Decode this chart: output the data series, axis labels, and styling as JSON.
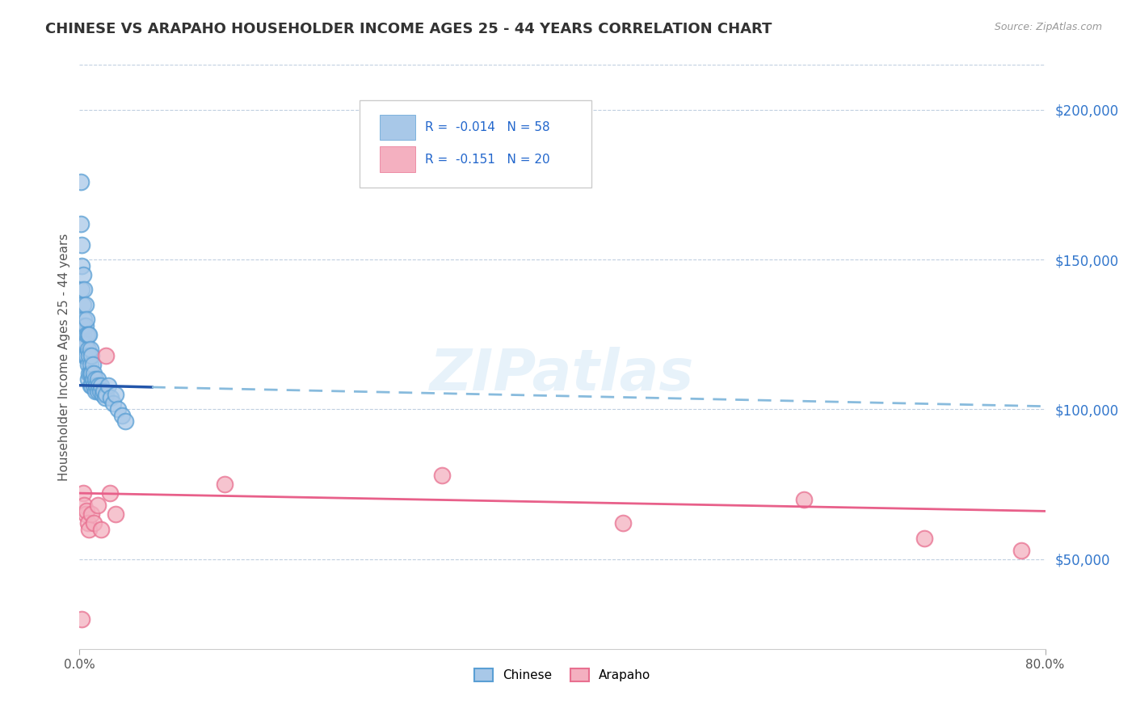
{
  "title": "CHINESE VS ARAPAHO HOUSEHOLDER INCOME AGES 25 - 44 YEARS CORRELATION CHART",
  "source": "Source: ZipAtlas.com",
  "ylabel": "Householder Income Ages 25 - 44 years",
  "xlim": [
    0.0,
    0.8
  ],
  "ylim": [
    20000,
    215000
  ],
  "yticks": [
    50000,
    100000,
    150000,
    200000
  ],
  "ytick_labels": [
    "$50,000",
    "$100,000",
    "$150,000",
    "$200,000"
  ],
  "chinese_color": "#a8c8e8",
  "chinese_edge_color": "#5a9fd4",
  "arapaho_color": "#f4b0c0",
  "arapaho_edge_color": "#e87090",
  "chinese_line_color_solid": "#2255aa",
  "chinese_line_color_dash": "#88bbdd",
  "arapaho_line_color": "#e8608a",
  "legend_text_color": "#2266cc",
  "watermark": "ZIPatlas",
  "chinese_x": [
    0.001,
    0.001,
    0.002,
    0.002,
    0.002,
    0.003,
    0.003,
    0.003,
    0.003,
    0.003,
    0.004,
    0.004,
    0.004,
    0.004,
    0.005,
    0.005,
    0.005,
    0.005,
    0.006,
    0.006,
    0.006,
    0.007,
    0.007,
    0.007,
    0.007,
    0.008,
    0.008,
    0.008,
    0.009,
    0.009,
    0.009,
    0.009,
    0.01,
    0.01,
    0.01,
    0.011,
    0.011,
    0.012,
    0.012,
    0.013,
    0.013,
    0.014,
    0.015,
    0.015,
    0.016,
    0.017,
    0.018,
    0.019,
    0.02,
    0.021,
    0.022,
    0.024,
    0.026,
    0.028,
    0.03,
    0.032,
    0.035,
    0.038
  ],
  "chinese_y": [
    176000,
    162000,
    155000,
    148000,
    140000,
    145000,
    135000,
    128000,
    125000,
    120000,
    140000,
    130000,
    122000,
    118000,
    135000,
    128000,
    122000,
    118000,
    130000,
    125000,
    118000,
    125000,
    120000,
    115000,
    110000,
    125000,
    118000,
    112000,
    120000,
    115000,
    112000,
    108000,
    118000,
    112000,
    108000,
    115000,
    110000,
    112000,
    108000,
    110000,
    106000,
    108000,
    110000,
    106000,
    108000,
    106000,
    108000,
    105000,
    106000,
    104000,
    105000,
    108000,
    104000,
    102000,
    105000,
    100000,
    98000,
    96000
  ],
  "arapaho_x": [
    0.002,
    0.003,
    0.004,
    0.005,
    0.006,
    0.007,
    0.008,
    0.01,
    0.012,
    0.015,
    0.018,
    0.022,
    0.025,
    0.03,
    0.12,
    0.3,
    0.45,
    0.6,
    0.7,
    0.78
  ],
  "arapaho_y": [
    30000,
    72000,
    68000,
    65000,
    66000,
    62000,
    60000,
    65000,
    62000,
    68000,
    60000,
    118000,
    72000,
    65000,
    75000,
    78000,
    62000,
    70000,
    57000,
    53000
  ],
  "chinese_line_x0": 0.0,
  "chinese_line_x_transition": 0.06,
  "chinese_line_x1": 0.8,
  "chinese_line_y0": 108000,
  "chinese_line_y_transition": 107400,
  "chinese_line_y1": 101000,
  "arapaho_line_x0": 0.0,
  "arapaho_line_x1": 0.8,
  "arapaho_line_y0": 72000,
  "arapaho_line_y1": 66000
}
